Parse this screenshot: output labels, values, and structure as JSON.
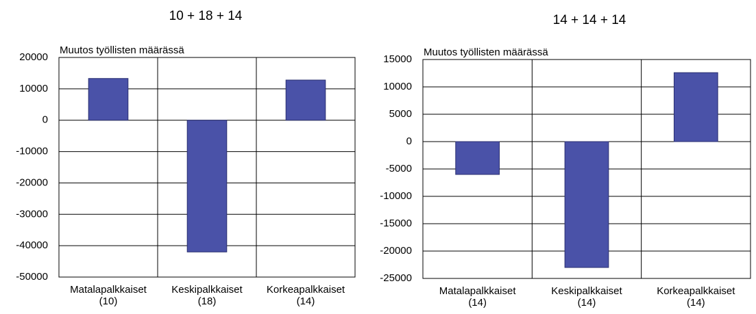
{
  "chart_data": [
    {
      "type": "bar",
      "title": "10 + 18 + 14",
      "y_label": "Muutos työllisten määrässä",
      "categories": [
        "Matalapalkkaiset\n(10)",
        "Keskipalkkaiset\n(18)",
        "Korkeapalkkaiset\n(14)"
      ],
      "values": [
        13300,
        -42000,
        12800
      ],
      "color": "#4a52a8",
      "ylim": [
        -50000,
        20000
      ],
      "yticks": [
        -50000,
        -40000,
        -30000,
        -20000,
        -10000,
        0,
        10000,
        20000
      ],
      "grid": true
    },
    {
      "type": "bar",
      "title": "14 + 14 + 14",
      "y_label": "Muutos työllisten määrässä",
      "categories": [
        "Matalapalkkaiset\n(14)",
        "Keskipalkkaiset\n(14)",
        "Korkeapalkkaiset\n(14)"
      ],
      "values": [
        -6000,
        -23000,
        12600
      ],
      "color": "#4a52a8",
      "ylim": [
        -25000,
        15000
      ],
      "yticks": [
        -25000,
        -20000,
        -15000,
        -10000,
        -5000,
        0,
        5000,
        10000,
        15000
      ],
      "grid": true
    }
  ]
}
